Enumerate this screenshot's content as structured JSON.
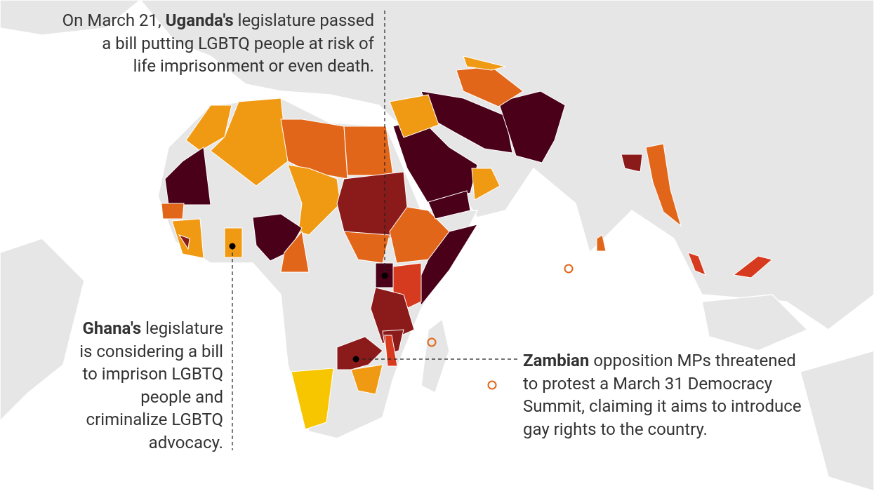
{
  "annotations": [
    {
      "lines": [
        [
          {
            "text": "On March 21, "
          },
          {
            "text": "Uganda's",
            "bold": true
          },
          {
            "text": " legislature passed"
          }
        ],
        [
          {
            "text": "a bill putting LGBTQ people at risk of"
          }
        ],
        [
          {
            "text": "life imprisonment or even death."
          }
        ]
      ]
    },
    {
      "lines": [
        [
          {
            "text": "Ghana's",
            "bold": true
          },
          {
            "text": " legislature"
          }
        ],
        [
          {
            "text": "is considering a bill"
          }
        ],
        [
          {
            "text": "to imprison LGBTQ"
          }
        ],
        [
          {
            "text": "people and"
          }
        ],
        [
          {
            "text": "criminalize LGBTQ"
          }
        ],
        [
          {
            "text": "advocacy."
          }
        ]
      ]
    },
    {
      "lines": [
        [
          {
            "text": "Zambian",
            "bold": true
          },
          {
            "text": " opposition MPs threatened"
          }
        ],
        [
          {
            "text": "to protest a March 31 Democracy"
          }
        ],
        [
          {
            "text": "Summit, claiming it aims to introduce"
          }
        ],
        [
          {
            "text": "gay rights to the country."
          }
        ]
      ]
    }
  ]
}
